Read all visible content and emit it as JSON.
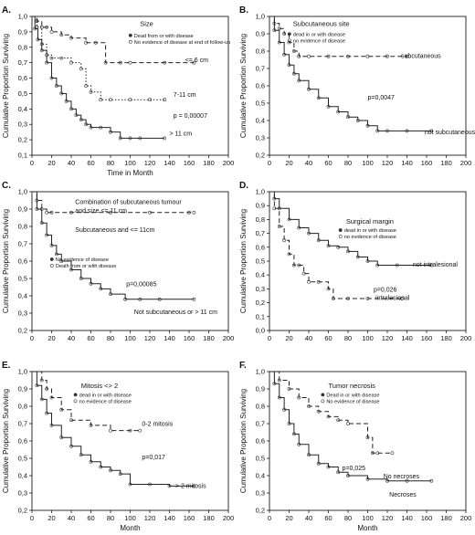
{
  "chart_data": [
    {
      "panel": "A.",
      "type": "line",
      "xlabel": "Time in Month",
      "ylabel": "Cumulative Proportion Surviving",
      "xlim": [
        0,
        200
      ],
      "ylim": [
        0.1,
        1.0
      ],
      "xticks": [
        "0",
        "20",
        "40",
        "60",
        "80",
        "100",
        "120",
        "140",
        "160",
        "180",
        "200"
      ],
      "yticks": [
        "0,1",
        "0,2",
        "0,3",
        "0,4",
        "0,5",
        "0,6",
        "0,7",
        "0,8",
        "0,9",
        "1,0"
      ],
      "grid": false,
      "legend": {
        "title": "Size",
        "entries": [
          "Dead from or with disease",
          "No evidence of disease at end of follow-up"
        ],
        "placement": "top-right"
      },
      "annotations": [
        "<= 6 cm",
        "7-11 cm",
        "p = 0,00007",
        "> 11 cm"
      ],
      "series": [
        {
          "style": "dashed",
          "x": [
            0,
            5,
            10,
            15,
            20,
            30,
            40,
            55,
            65,
            75,
            90,
            100,
            135,
            165
          ],
          "y": [
            1.0,
            0.97,
            0.93,
            0.93,
            0.9,
            0.88,
            0.86,
            0.83,
            0.83,
            0.7,
            0.7,
            0.7,
            0.7,
            0.7
          ]
        },
        {
          "style": "dotted",
          "x": [
            0,
            5,
            10,
            15,
            20,
            30,
            40,
            50,
            55,
            60,
            70,
            80,
            100,
            120,
            135
          ],
          "y": [
            1.0,
            0.93,
            0.82,
            0.75,
            0.73,
            0.73,
            0.7,
            0.66,
            0.55,
            0.51,
            0.46,
            0.46,
            0.46,
            0.46,
            0.46
          ]
        },
        {
          "style": "solid",
          "x": [
            0,
            3,
            6,
            10,
            15,
            20,
            25,
            30,
            35,
            40,
            45,
            50,
            55,
            60,
            70,
            80,
            90,
            100,
            110,
            135
          ],
          "y": [
            1.0,
            0.92,
            0.85,
            0.78,
            0.7,
            0.6,
            0.55,
            0.5,
            0.45,
            0.4,
            0.36,
            0.33,
            0.3,
            0.28,
            0.28,
            0.25,
            0.21,
            0.21,
            0.21,
            0.21
          ]
        }
      ]
    },
    {
      "panel": "B.",
      "type": "line",
      "xlabel": "",
      "ylabel": "Cumulative Proportion Surviving",
      "xlim": [
        0,
        200
      ],
      "ylim": [
        0.2,
        1.0
      ],
      "xticks": [
        "0",
        "20",
        "40",
        "60",
        "80",
        "100",
        "120",
        "140",
        "160",
        "180",
        "200"
      ],
      "yticks": [
        "0,2",
        "0,3",
        "0,4",
        "0,5",
        "0,6",
        "0,7",
        "0,8",
        "0,9",
        "1,0"
      ],
      "grid": false,
      "legend": {
        "title": "Subcutaneous site",
        "entries": [
          "dead in or with disease",
          "no evidence of disease"
        ],
        "placement": "top-right"
      },
      "annotations": [
        "subcutaneous",
        "p=0,0047",
        "not subcutaneous"
      ],
      "series": [
        {
          "style": "dashed",
          "x": [
            0,
            5,
            10,
            15,
            20,
            25,
            30,
            40,
            60,
            80,
            100,
            120,
            140
          ],
          "y": [
            1.0,
            0.96,
            0.93,
            0.9,
            0.85,
            0.8,
            0.77,
            0.77,
            0.77,
            0.77,
            0.77,
            0.77,
            0.77
          ]
        },
        {
          "style": "solid",
          "x": [
            0,
            5,
            10,
            15,
            20,
            25,
            30,
            40,
            50,
            60,
            70,
            80,
            90,
            100,
            110,
            120,
            140,
            165
          ],
          "y": [
            1.0,
            0.92,
            0.85,
            0.78,
            0.72,
            0.67,
            0.63,
            0.58,
            0.53,
            0.48,
            0.45,
            0.42,
            0.4,
            0.37,
            0.34,
            0.34,
            0.34,
            0.34
          ]
        }
      ]
    },
    {
      "panel": "C.",
      "type": "line",
      "xlabel": "",
      "ylabel": "Cumulative Proportion Surviving",
      "xlim": [
        0,
        200
      ],
      "ylim": [
        0.2,
        1.0
      ],
      "xticks": [
        "0",
        "20",
        "40",
        "60",
        "80",
        "100",
        "120",
        "140",
        "160",
        "180",
        "200"
      ],
      "yticks": [
        "0,2",
        "0,3",
        "0,4",
        "0,5",
        "0,6",
        "0,7",
        "0,8",
        "0,9",
        "1,0"
      ],
      "grid": false,
      "legend": {
        "title": "",
        "entries": [
          "No evidence of disease",
          "Death from or with disease"
        ],
        "placement": "middle-left"
      },
      "annotations": [
        "Combination of subcutaneous tumour",
        "and size <= 11 cm",
        "Subcutaneous and <= 11cm",
        "p=0,00085",
        "Not subcutaneous or > 11 cm"
      ],
      "series": [
        {
          "style": "dashed",
          "x": [
            0,
            5,
            10,
            15,
            20,
            40,
            80,
            120,
            160,
            165
          ],
          "y": [
            1.0,
            0.95,
            0.9,
            0.88,
            0.88,
            0.88,
            0.88,
            0.88,
            0.88,
            0.88
          ]
        },
        {
          "style": "solid",
          "x": [
            0,
            5,
            10,
            15,
            20,
            25,
            30,
            40,
            50,
            60,
            70,
            80,
            95,
            110,
            130,
            165
          ],
          "y": [
            1.0,
            0.9,
            0.82,
            0.75,
            0.69,
            0.64,
            0.6,
            0.55,
            0.5,
            0.47,
            0.44,
            0.41,
            0.38,
            0.38,
            0.38,
            0.38
          ]
        }
      ]
    },
    {
      "panel": "D.",
      "type": "line",
      "xlabel": "",
      "ylabel": "Cumulative Proportion Surviving",
      "xlim": [
        0,
        200
      ],
      "ylim": [
        0.0,
        1.0
      ],
      "xticks": [
        "0",
        "20",
        "40",
        "60",
        "80",
        "100",
        "120",
        "140",
        "160",
        "180",
        "200"
      ],
      "yticks": [
        "0,0",
        "0,1",
        "0,2",
        "0,3",
        "0,4",
        "0,5",
        "0,6",
        "0,7",
        "0,8",
        "0,9",
        "1,0"
      ],
      "grid": false,
      "legend": {
        "title": "Surgical margin",
        "entries": [
          "dead in or with disease",
          "no evidence of disease"
        ],
        "placement": "top-center"
      },
      "annotations": [
        "not intralesional",
        "p=0,026",
        "intralesional"
      ],
      "series": [
        {
          "style": "dashed",
          "x": [
            0,
            5,
            10,
            15,
            20,
            25,
            30,
            35,
            40,
            50,
            60,
            65,
            80,
            100,
            135
          ],
          "y": [
            1.0,
            0.88,
            0.75,
            0.65,
            0.55,
            0.47,
            0.47,
            0.41,
            0.35,
            0.35,
            0.3,
            0.23,
            0.23,
            0.23,
            0.23
          ]
        },
        {
          "style": "solid",
          "x": [
            0,
            5,
            10,
            20,
            30,
            40,
            50,
            60,
            70,
            80,
            90,
            100,
            110,
            130,
            165
          ],
          "y": [
            1.0,
            0.95,
            0.88,
            0.8,
            0.74,
            0.7,
            0.65,
            0.61,
            0.6,
            0.57,
            0.53,
            0.5,
            0.47,
            0.47,
            0.47
          ]
        }
      ]
    },
    {
      "panel": "E.",
      "type": "line",
      "xlabel": "Month",
      "ylabel": "Cumulative Proportion Surviving",
      "xlim": [
        0,
        200
      ],
      "ylim": [
        0.2,
        1.0
      ],
      "xticks": [
        "0",
        "20",
        "40",
        "60",
        "80",
        "100",
        "120",
        "140",
        "160",
        "180",
        "200"
      ],
      "yticks": [
        "0,2",
        "0,3",
        "0,4",
        "0,5",
        "0,6",
        "0,7",
        "0,8",
        "0,9",
        "1,0"
      ],
      "grid": false,
      "legend": {
        "title": "Mitosis <> 2",
        "entries": [
          "dead in or with disease",
          "no evidence of disease"
        ],
        "placement": "top-center"
      },
      "annotations": [
        "0-2 mitosis",
        "p=0,017",
        "> 2 mitosis"
      ],
      "series": [
        {
          "style": "dashed",
          "x": [
            0,
            10,
            15,
            20,
            30,
            40,
            60,
            80,
            100,
            110
          ],
          "y": [
            1.0,
            0.95,
            0.9,
            0.85,
            0.78,
            0.72,
            0.69,
            0.66,
            0.66,
            0.66
          ]
        },
        {
          "style": "solid",
          "x": [
            0,
            5,
            10,
            15,
            20,
            30,
            40,
            50,
            60,
            70,
            80,
            90,
            100,
            120,
            140,
            165
          ],
          "y": [
            1.0,
            0.92,
            0.84,
            0.76,
            0.69,
            0.62,
            0.57,
            0.52,
            0.48,
            0.45,
            0.43,
            0.41,
            0.35,
            0.35,
            0.34,
            0.34
          ]
        }
      ]
    },
    {
      "panel": "F.",
      "type": "line",
      "xlabel": "Month",
      "ylabel": "Cumulative Proportion Surviving",
      "xlim": [
        0,
        200
      ],
      "ylim": [
        0.2,
        1.0
      ],
      "xticks": [
        "0",
        "20",
        "40",
        "60",
        "80",
        "100",
        "120",
        "140",
        "160",
        "180",
        "200"
      ],
      "yticks": [
        "0,2",
        "0,3",
        "0,4",
        "0,5",
        "0,6",
        "0,7",
        "0,8",
        "0,9",
        "1,0"
      ],
      "grid": false,
      "legend": {
        "title": "Tumor necrosis",
        "entries": [
          "Dead in or with disease",
          "No evidence of disease"
        ],
        "placement": "top-center"
      },
      "annotations": [
        "p=0,025",
        "No necroses",
        "Necroses"
      ],
      "series": [
        {
          "style": "dashed",
          "x": [
            0,
            10,
            20,
            30,
            40,
            50,
            60,
            70,
            80,
            100,
            105,
            110,
            125
          ],
          "y": [
            1.0,
            0.95,
            0.9,
            0.85,
            0.8,
            0.77,
            0.74,
            0.72,
            0.7,
            0.62,
            0.53,
            0.53,
            0.53
          ]
        },
        {
          "style": "solid",
          "x": [
            0,
            5,
            10,
            15,
            20,
            25,
            30,
            40,
            50,
            60,
            70,
            80,
            100,
            120,
            140,
            165
          ],
          "y": [
            1.0,
            0.93,
            0.85,
            0.78,
            0.7,
            0.64,
            0.58,
            0.52,
            0.47,
            0.45,
            0.42,
            0.4,
            0.38,
            0.37,
            0.37,
            0.37
          ]
        }
      ]
    }
  ]
}
